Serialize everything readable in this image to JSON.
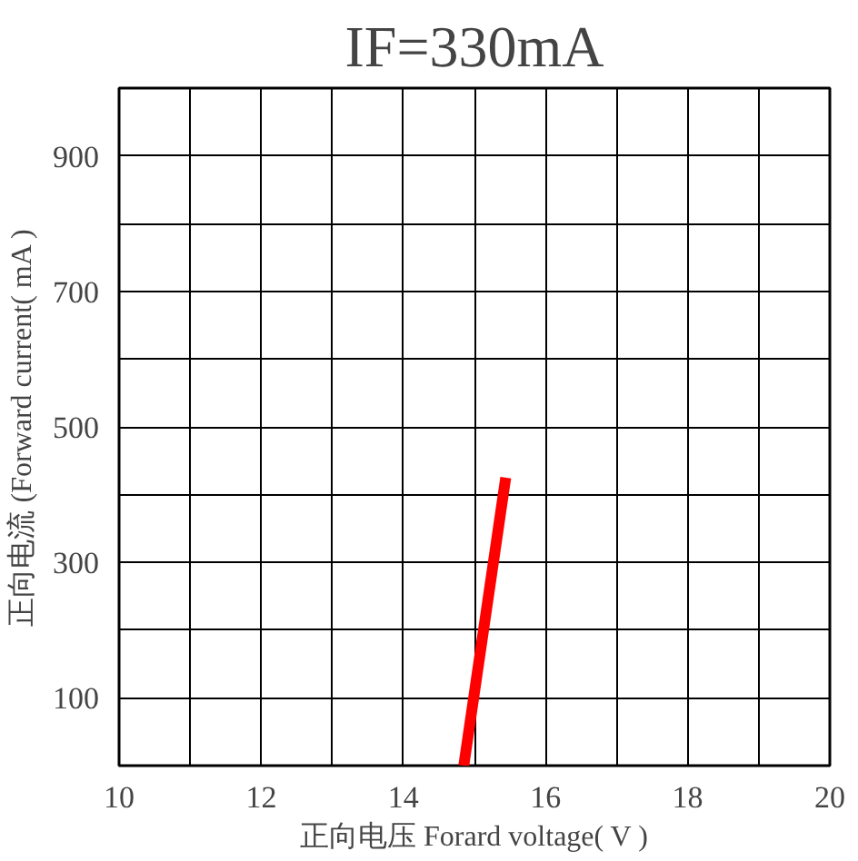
{
  "chart_data": {
    "type": "line",
    "title": "IF=330mA",
    "xlabel": "正向电压 Forard voltage( V )",
    "ylabel": "正向电流 (Forward current( mA )",
    "x": [
      14.85,
      15.44
    ],
    "series": [
      {
        "color": "#ff0000",
        "values": [
          0,
          425
        ]
      }
    ],
    "xlim": [
      10,
      20
    ],
    "ylim": [
      0,
      1000
    ],
    "xticks": [
      10,
      {
        "value": 11,
        "label": null
      },
      12,
      {
        "value": 13,
        "label": null
      },
      14,
      {
        "value": 15,
        "label": null
      },
      16,
      {
        "value": 17,
        "label": null
      },
      18,
      {
        "value": 19,
        "label": null
      },
      20
    ],
    "yticks": [
      {
        "value": 0,
        "label": null
      },
      100,
      {
        "value": 200,
        "label": null
      },
      300,
      {
        "value": 400,
        "label": null
      },
      500,
      {
        "value": 600,
        "label": null
      },
      700,
      {
        "value": 800,
        "label": null
      },
      900,
      {
        "value": 1000,
        "label": null
      }
    ],
    "grid": true,
    "line_style": "solid"
  }
}
